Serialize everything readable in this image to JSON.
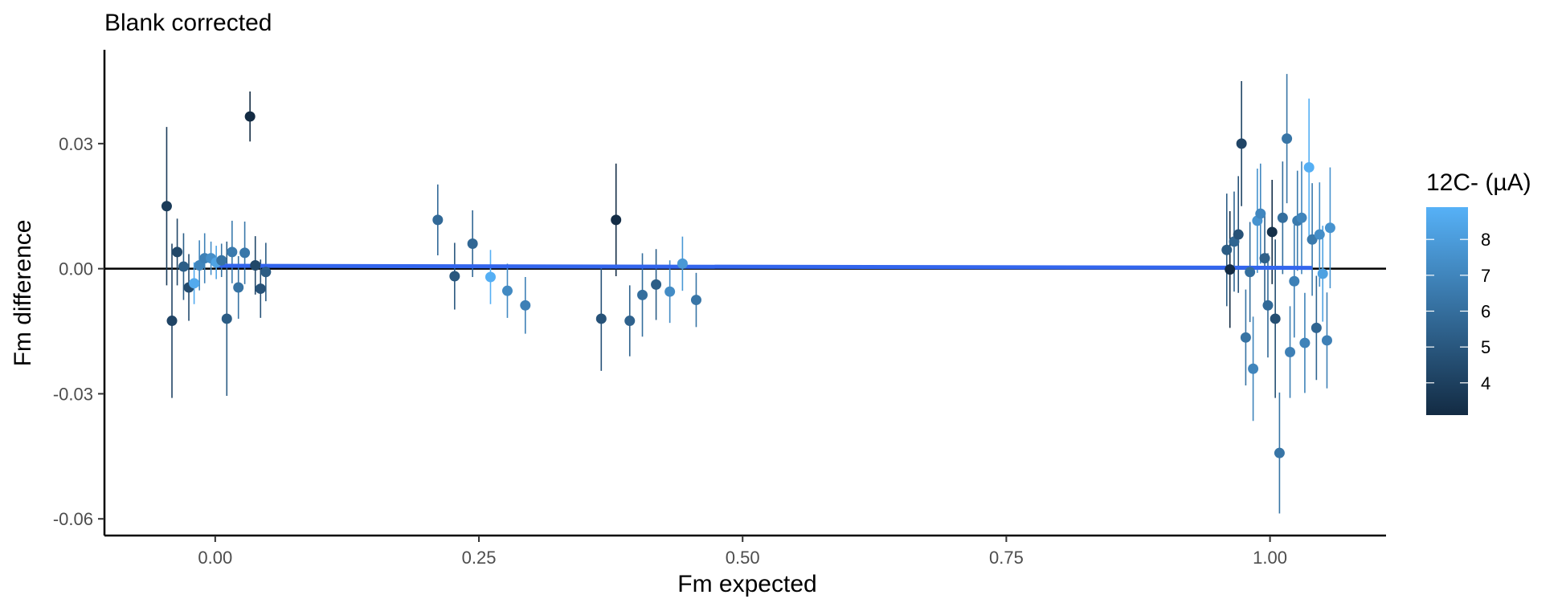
{
  "chart_data": {
    "type": "scatter",
    "title": "Blank corrected",
    "xlabel": "Fm expected",
    "ylabel": "Fm difference",
    "xlim": [
      -0.105,
      1.11
    ],
    "ylim": [
      -0.064,
      0.0525
    ],
    "x_ticks": [
      0.0,
      0.25,
      0.5,
      0.75,
      1.0
    ],
    "x_tick_labels": [
      "0.00",
      "0.25",
      "0.50",
      "0.75",
      "1.00"
    ],
    "y_ticks": [
      -0.06,
      -0.03,
      0.0,
      0.03
    ],
    "y_tick_labels": [
      "-0.06",
      "-0.03",
      "0.00",
      "0.03"
    ],
    "reference_line_y": 0,
    "fit_line": {
      "x": [
        0.0,
        1.04
      ],
      "y": [
        0.0007,
        0.0002
      ],
      "color": "#3366ee"
    },
    "grid": false,
    "legend": {
      "title": "12C- (µA)",
      "position": "right",
      "type": "colorbar",
      "range": [
        3.1,
        8.9
      ],
      "ticks": [
        4,
        5,
        6,
        7,
        8
      ],
      "tick_labels": [
        "4",
        "5",
        "6",
        "7",
        "8"
      ],
      "color_low": "#132b43",
      "color_high": "#56b1f7"
    },
    "points": [
      {
        "x": -0.046,
        "y": 0.015,
        "err": 0.019,
        "c": 3.8
      },
      {
        "x": -0.041,
        "y": -0.0125,
        "err": 0.0185,
        "c": 4.2
      },
      {
        "x": -0.036,
        "y": 0.004,
        "err": 0.008,
        "c": 4.3
      },
      {
        "x": -0.03,
        "y": 0.0005,
        "err": 0.008,
        "c": 5.3
      },
      {
        "x": -0.025,
        "y": -0.0045,
        "err": 0.008,
        "c": 4.5
      },
      {
        "x": -0.02,
        "y": -0.0035,
        "err": 0.005,
        "c": 8.6
      },
      {
        "x": -0.015,
        "y": 0.0008,
        "err": 0.006,
        "c": 7.0
      },
      {
        "x": -0.01,
        "y": 0.0025,
        "err": 0.006,
        "c": 6.8
      },
      {
        "x": -0.004,
        "y": 0.0025,
        "err": 0.004,
        "c": 7.4
      },
      {
        "x": 0.001,
        "y": 0.0015,
        "err": 0.004,
        "c": 8.3
      },
      {
        "x": 0.006,
        "y": 0.002,
        "err": 0.004,
        "c": 6.2
      },
      {
        "x": 0.011,
        "y": -0.012,
        "err": 0.0185,
        "c": 5.2
      },
      {
        "x": 0.016,
        "y": 0.004,
        "err": 0.0075,
        "c": 6.5
      },
      {
        "x": 0.022,
        "y": -0.0045,
        "err": 0.0075,
        "c": 6.2
      },
      {
        "x": 0.028,
        "y": 0.0038,
        "err": 0.0075,
        "c": 6.4
      },
      {
        "x": 0.033,
        "y": 0.0365,
        "err": 0.006,
        "c": 3.1
      },
      {
        "x": 0.038,
        "y": 0.0008,
        "err": 0.007,
        "c": 4.3
      },
      {
        "x": 0.043,
        "y": -0.0048,
        "err": 0.007,
        "c": 4.8
      },
      {
        "x": 0.048,
        "y": -0.0008,
        "err": 0.007,
        "c": 5.2
      },
      {
        "x": 0.211,
        "y": 0.0117,
        "err": 0.0085,
        "c": 5.8
      },
      {
        "x": 0.227,
        "y": -0.0018,
        "err": 0.008,
        "c": 5.0
      },
      {
        "x": 0.244,
        "y": 0.006,
        "err": 0.008,
        "c": 5.7
      },
      {
        "x": 0.261,
        "y": -0.002,
        "err": 0.0065,
        "c": 8.8
      },
      {
        "x": 0.277,
        "y": -0.0053,
        "err": 0.0065,
        "c": 7.2
      },
      {
        "x": 0.294,
        "y": -0.0088,
        "err": 0.0068,
        "c": 6.8
      },
      {
        "x": 0.366,
        "y": -0.012,
        "err": 0.0125,
        "c": 4.8
      },
      {
        "x": 0.38,
        "y": 0.0117,
        "err": 0.0135,
        "c": 3.2
      },
      {
        "x": 0.393,
        "y": -0.0125,
        "err": 0.0085,
        "c": 5.5
      },
      {
        "x": 0.405,
        "y": -0.0063,
        "err": 0.01,
        "c": 6.0
      },
      {
        "x": 0.418,
        "y": -0.0038,
        "err": 0.0085,
        "c": 5.3
      },
      {
        "x": 0.431,
        "y": -0.0055,
        "err": 0.0075,
        "c": 7.3
      },
      {
        "x": 0.443,
        "y": 0.0012,
        "err": 0.0065,
        "c": 7.8
      },
      {
        "x": 0.456,
        "y": -0.0075,
        "err": 0.0065,
        "c": 6.3
      },
      {
        "x": 0.959,
        "y": 0.0045,
        "err": 0.0135,
        "c": 5.2
      },
      {
        "x": 0.962,
        "y": -0.0002,
        "err": 0.014,
        "c": 3.1
      },
      {
        "x": 0.966,
        "y": 0.0065,
        "err": 0.012,
        "c": 5.6
      },
      {
        "x": 0.97,
        "y": 0.0082,
        "err": 0.014,
        "c": 4.8
      },
      {
        "x": 0.973,
        "y": 0.03,
        "err": 0.015,
        "c": 4.2
      },
      {
        "x": 0.977,
        "y": -0.0165,
        "err": 0.0115,
        "c": 6.2
      },
      {
        "x": 0.981,
        "y": -0.0008,
        "err": 0.012,
        "c": 6.0
      },
      {
        "x": 0.984,
        "y": -0.024,
        "err": 0.0125,
        "c": 7.0
      },
      {
        "x": 0.988,
        "y": 0.0115,
        "err": 0.0125,
        "c": 7.6
      },
      {
        "x": 0.991,
        "y": 0.0132,
        "err": 0.012,
        "c": 7.1
      },
      {
        "x": 0.995,
        "y": 0.0025,
        "err": 0.0105,
        "c": 5.4
      },
      {
        "x": 0.998,
        "y": -0.0088,
        "err": 0.0125,
        "c": 5.8
      },
      {
        "x": 1.002,
        "y": 0.0088,
        "err": 0.0125,
        "c": 3.3
      },
      {
        "x": 1.005,
        "y": -0.012,
        "err": 0.019,
        "c": 4.6
      },
      {
        "x": 1.009,
        "y": -0.0442,
        "err": 0.0145,
        "c": 6.3
      },
      {
        "x": 1.012,
        "y": 0.0122,
        "err": 0.0135,
        "c": 6.0
      },
      {
        "x": 1.016,
        "y": 0.0312,
        "err": 0.0155,
        "c": 6.3
      },
      {
        "x": 1.019,
        "y": -0.02,
        "err": 0.011,
        "c": 6.8
      },
      {
        "x": 1.023,
        "y": -0.003,
        "err": 0.0135,
        "c": 6.8
      },
      {
        "x": 1.026,
        "y": 0.0115,
        "err": 0.012,
        "c": 6.5
      },
      {
        "x": 1.03,
        "y": 0.0122,
        "err": 0.0135,
        "c": 7.0
      },
      {
        "x": 1.033,
        "y": -0.0178,
        "err": 0.012,
        "c": 6.9
      },
      {
        "x": 1.037,
        "y": 0.0243,
        "err": 0.0165,
        "c": 8.8
      },
      {
        "x": 1.04,
        "y": 0.007,
        "err": 0.0135,
        "c": 6.5
      },
      {
        "x": 1.044,
        "y": -0.0142,
        "err": 0.0125,
        "c": 5.6
      },
      {
        "x": 1.047,
        "y": 0.0082,
        "err": 0.0125,
        "c": 7.4
      },
      {
        "x": 1.05,
        "y": -0.0012,
        "err": 0.0115,
        "c": 8.2
      },
      {
        "x": 1.054,
        "y": -0.0172,
        "err": 0.0115,
        "c": 6.8
      },
      {
        "x": 1.057,
        "y": 0.0098,
        "err": 0.0145,
        "c": 7.6
      }
    ]
  }
}
